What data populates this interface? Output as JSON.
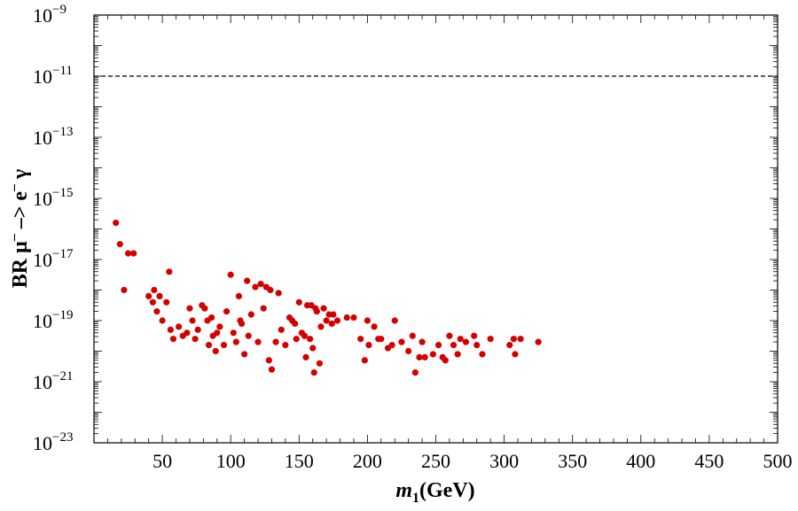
{
  "chart_data": {
    "type": "scatter",
    "xlabel_var": "m",
    "xlabel_sub": "1",
    "xlabel_unit": "(GeV)",
    "ylabel_main": "BR μ",
    "ylabel_mid": " –> e",
    "ylabel_end": " γ",
    "ylabel_sup": "–",
    "xlim": [
      0,
      500
    ],
    "ylim_exp": [
      -23,
      -9
    ],
    "xticks": [
      50,
      100,
      150,
      200,
      250,
      300,
      350,
      400,
      450,
      500
    ],
    "yticks_exp": [
      -23,
      -21,
      -19,
      -17,
      -15,
      -13,
      -11,
      -9
    ],
    "ytick_base": "10",
    "reference_line": {
      "y_exp": -11,
      "style": "dashed"
    },
    "point_color": "#d40000",
    "series": [
      {
        "name": "BR",
        "points": [
          [
            16,
            -15.8
          ],
          [
            19,
            -16.5
          ],
          [
            22,
            -18.0
          ],
          [
            25,
            -16.8
          ],
          [
            29,
            -16.8
          ],
          [
            40,
            -18.2
          ],
          [
            43,
            -18.4
          ],
          [
            44,
            -18.0
          ],
          [
            46,
            -18.7
          ],
          [
            48,
            -18.2
          ],
          [
            50,
            -19.0
          ],
          [
            53,
            -18.4
          ],
          [
            55,
            -17.4
          ],
          [
            56,
            -19.3
          ],
          [
            58,
            -19.6
          ],
          [
            62,
            -19.2
          ],
          [
            65,
            -19.5
          ],
          [
            68,
            -19.4
          ],
          [
            70,
            -18.6
          ],
          [
            72,
            -19.0
          ],
          [
            74,
            -19.6
          ],
          [
            76,
            -19.3
          ],
          [
            79,
            -18.5
          ],
          [
            81,
            -18.6
          ],
          [
            83,
            -19.0
          ],
          [
            84,
            -19.8
          ],
          [
            86,
            -18.9
          ],
          [
            87,
            -19.5
          ],
          [
            89,
            -20.0
          ],
          [
            90,
            -19.4
          ],
          [
            92,
            -19.2
          ],
          [
            95,
            -19.8
          ],
          [
            97,
            -18.7
          ],
          [
            100,
            -17.5
          ],
          [
            102,
            -19.4
          ],
          [
            104,
            -19.7
          ],
          [
            106,
            -18.2
          ],
          [
            107,
            -19.0
          ],
          [
            108,
            -19.1
          ],
          [
            110,
            -20.1
          ],
          [
            112,
            -17.7
          ],
          [
            113,
            -19.5
          ],
          [
            115,
            -18.8
          ],
          [
            118,
            -17.9
          ],
          [
            120,
            -19.7
          ],
          [
            122,
            -17.8
          ],
          [
            124,
            -18.6
          ],
          [
            126,
            -17.9
          ],
          [
            128,
            -20.3
          ],
          [
            129,
            -18.0
          ],
          [
            130,
            -20.6
          ],
          [
            133,
            -19.7
          ],
          [
            135,
            -18.1
          ],
          [
            137,
            -19.3
          ],
          [
            140,
            -19.8
          ],
          [
            143,
            -18.9
          ],
          [
            145,
            -19.0
          ],
          [
            147,
            -19.1
          ],
          [
            148,
            -19.6
          ],
          [
            150,
            -18.4
          ],
          [
            152,
            -19.4
          ],
          [
            154,
            -19.5
          ],
          [
            155,
            -20.2
          ],
          [
            156,
            -18.5
          ],
          [
            158,
            -19.6
          ],
          [
            159,
            -18.5
          ],
          [
            160,
            -19.9
          ],
          [
            161,
            -20.7
          ],
          [
            162,
            -18.6
          ],
          [
            163,
            -18.7
          ],
          [
            165,
            -20.4
          ],
          [
            166,
            -19.2
          ],
          [
            168,
            -18.6
          ],
          [
            170,
            -19.0
          ],
          [
            172,
            -18.8
          ],
          [
            174,
            -19.1
          ],
          [
            175,
            -18.8
          ],
          [
            178,
            -19.0
          ],
          [
            185,
            -18.9
          ],
          [
            190,
            -18.9
          ],
          [
            195,
            -19.6
          ],
          [
            198,
            -20.3
          ],
          [
            200,
            -19.0
          ],
          [
            201,
            -19.8
          ],
          [
            205,
            -19.2
          ],
          [
            208,
            -19.6
          ],
          [
            210,
            -19.6
          ],
          [
            215,
            -19.9
          ],
          [
            218,
            -19.8
          ],
          [
            220,
            -19.0
          ],
          [
            225,
            -19.7
          ],
          [
            230,
            -20.0
          ],
          [
            233,
            -19.5
          ],
          [
            235,
            -20.7
          ],
          [
            238,
            -20.2
          ],
          [
            240,
            -19.7
          ],
          [
            242,
            -20.2
          ],
          [
            248,
            -20.1
          ],
          [
            252,
            -19.8
          ],
          [
            255,
            -20.2
          ],
          [
            257,
            -20.3
          ],
          [
            260,
            -19.5
          ],
          [
            263,
            -19.8
          ],
          [
            266,
            -20.1
          ],
          [
            268,
            -19.6
          ],
          [
            272,
            -19.7
          ],
          [
            278,
            -19.5
          ],
          [
            280,
            -19.8
          ],
          [
            284,
            -20.1
          ],
          [
            290,
            -19.6
          ],
          [
            304,
            -19.8
          ],
          [
            307,
            -19.6
          ],
          [
            308,
            -20.1
          ],
          [
            312,
            -19.6
          ],
          [
            325,
            -19.7
          ]
        ]
      }
    ]
  }
}
